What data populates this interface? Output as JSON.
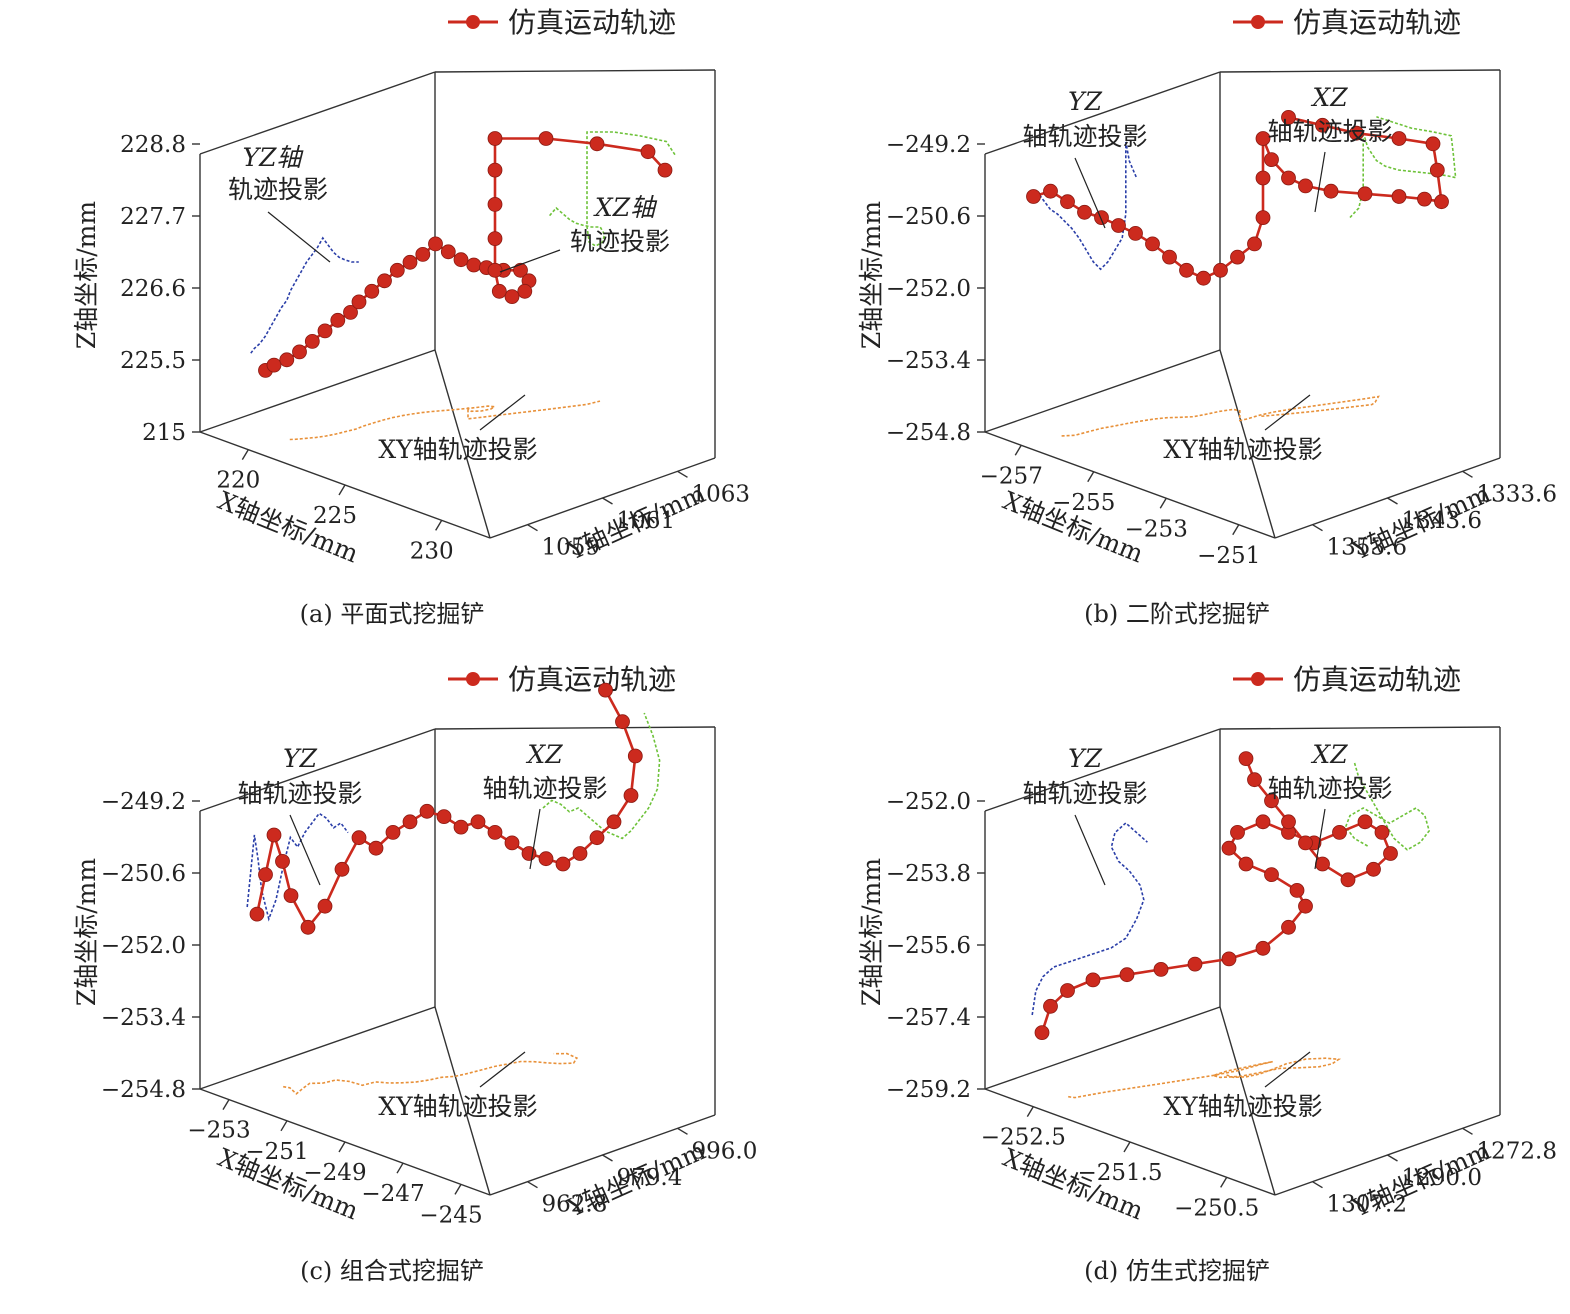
{
  "colors": {
    "sim": "#cc2a1e",
    "yz": "#2b3fa8",
    "xz": "#6ec23a",
    "xy": "#e8913a",
    "axis": "#333333"
  },
  "chart_data": [
    {
      "type": "scatter",
      "caption": "(a) 平面式挖掘铲",
      "legend": "仿真运动轨迹",
      "zlabel": "Z轴坐标/mm",
      "xlabel": "X轴坐标/mm",
      "ylabel": "Y轴坐标/mm",
      "z_ticks": [
        "228.8",
        "227.7",
        "226.6",
        "225.5",
        "215"
      ],
      "x_ticks": [
        "220",
        "225",
        "230"
      ],
      "y_ticks": [
        "1063",
        "1061",
        "1059"
      ],
      "annotations": [
        "YZ轴",
        "轨迹投影",
        "XZ轴",
        "轨迹投影",
        "XY轴轨迹投影"
      ],
      "series": [
        {
          "name": "仿真运动轨迹",
          "points": [
            [
              0.06,
              0.12
            ],
            [
              0.08,
              0.14
            ],
            [
              0.11,
              0.16
            ],
            [
              0.14,
              0.19
            ],
            [
              0.17,
              0.23
            ],
            [
              0.2,
              0.27
            ],
            [
              0.23,
              0.31
            ],
            [
              0.26,
              0.34
            ],
            [
              0.28,
              0.38
            ],
            [
              0.31,
              0.42
            ],
            [
              0.34,
              0.46
            ],
            [
              0.37,
              0.5
            ],
            [
              0.4,
              0.53
            ],
            [
              0.43,
              0.56
            ],
            [
              0.46,
              0.6
            ],
            [
              0.49,
              0.57
            ],
            [
              0.52,
              0.54
            ],
            [
              0.55,
              0.52
            ],
            [
              0.58,
              0.51
            ],
            [
              0.62,
              0.5
            ],
            [
              0.66,
              0.5
            ],
            [
              0.68,
              0.46
            ],
            [
              0.67,
              0.42
            ],
            [
              0.64,
              0.4
            ],
            [
              0.61,
              0.42
            ],
            [
              0.6,
              0.5
            ],
            [
              0.6,
              0.62
            ],
            [
              0.6,
              0.75
            ],
            [
              0.6,
              0.88
            ],
            [
              0.6,
              1.0
            ],
            [
              0.72,
              1.0
            ],
            [
              0.84,
              0.98
            ],
            [
              0.96,
              0.95
            ],
            [
              1.0,
              0.88
            ]
          ]
        }
      ]
    },
    {
      "type": "scatter",
      "caption": "(b) 二阶式挖掘铲",
      "legend": "仿真运动轨迹",
      "zlabel": "Z轴坐标/mm",
      "xlabel": "X轴坐标/mm",
      "ylabel": "Y轴坐标/mm",
      "z_ticks": [
        "−249.2",
        "−250.6",
        "−252.0",
        "−253.4",
        "−254.8"
      ],
      "x_ticks": [
        "−257",
        "−255",
        "−253",
        "−251"
      ],
      "y_ticks": [
        "1333.6",
        "1343.6",
        "1353.6"
      ],
      "annotations": [
        "YZ",
        "轴轨迹投影",
        "XZ",
        "轴轨迹投影",
        "XY轴轨迹投影"
      ],
      "series": [
        {
          "name": "仿真运动轨迹",
          "points": [
            [
              0.02,
              0.78
            ],
            [
              0.06,
              0.8
            ],
            [
              0.1,
              0.76
            ],
            [
              0.14,
              0.72
            ],
            [
              0.18,
              0.7
            ],
            [
              0.22,
              0.67
            ],
            [
              0.26,
              0.64
            ],
            [
              0.3,
              0.6
            ],
            [
              0.34,
              0.55
            ],
            [
              0.38,
              0.5
            ],
            [
              0.42,
              0.47
            ],
            [
              0.46,
              0.5
            ],
            [
              0.5,
              0.55
            ],
            [
              0.54,
              0.6
            ],
            [
              0.56,
              0.7
            ],
            [
              0.56,
              0.85
            ],
            [
              0.56,
              1.0
            ],
            [
              0.58,
              0.92
            ],
            [
              0.62,
              0.85
            ],
            [
              0.66,
              0.82
            ],
            [
              0.72,
              0.8
            ],
            [
              0.8,
              0.79
            ],
            [
              0.88,
              0.78
            ],
            [
              0.94,
              0.77
            ],
            [
              0.98,
              0.76
            ],
            [
              0.97,
              0.88
            ],
            [
              0.96,
              0.98
            ],
            [
              0.88,
              1.0
            ],
            [
              0.78,
              1.02
            ],
            [
              0.7,
              1.05
            ],
            [
              0.62,
              1.08
            ]
          ]
        }
      ]
    },
    {
      "type": "scatter",
      "caption": "(c) 组合式挖掘铲",
      "legend": "仿真运动轨迹",
      "zlabel": "Z轴坐标/mm",
      "xlabel": "X轴坐标/mm",
      "ylabel": "Y轴坐标/mm",
      "z_ticks": [
        "−249.2",
        "−250.6",
        "−252.0",
        "−253.4",
        "−254.8"
      ],
      "x_ticks": [
        "−253",
        "−251",
        "−249",
        "−247",
        "−245"
      ],
      "y_ticks": [
        "996.0",
        "979.4",
        "962.8"
      ],
      "annotations": [
        "YZ",
        "轴轨迹投影",
        "XZ",
        "轴轨迹投影",
        "XY轴轨迹投影"
      ],
      "series": [
        {
          "name": "仿真运动轨迹",
          "points": [
            [
              0.04,
              0.55
            ],
            [
              0.06,
              0.7
            ],
            [
              0.08,
              0.85
            ],
            [
              0.1,
              0.75
            ],
            [
              0.12,
              0.62
            ],
            [
              0.16,
              0.5
            ],
            [
              0.2,
              0.58
            ],
            [
              0.24,
              0.72
            ],
            [
              0.28,
              0.84
            ],
            [
              0.32,
              0.8
            ],
            [
              0.36,
              0.86
            ],
            [
              0.4,
              0.9
            ],
            [
              0.44,
              0.94
            ],
            [
              0.48,
              0.92
            ],
            [
              0.52,
              0.88
            ],
            [
              0.56,
              0.9
            ],
            [
              0.6,
              0.86
            ],
            [
              0.64,
              0.82
            ],
            [
              0.68,
              0.78
            ],
            [
              0.72,
              0.76
            ],
            [
              0.76,
              0.74
            ],
            [
              0.8,
              0.78
            ],
            [
              0.84,
              0.84
            ],
            [
              0.88,
              0.9
            ],
            [
              0.92,
              1.0
            ],
            [
              0.93,
              1.15
            ],
            [
              0.9,
              1.28
            ],
            [
              0.86,
              1.4
            ]
          ]
        }
      ]
    },
    {
      "type": "scatter",
      "caption": "(d) 仿生式挖掘铲",
      "legend": "仿真运动轨迹",
      "zlabel": "Z轴坐标/mm",
      "xlabel": "X轴坐标/mm",
      "ylabel": "Y轴坐标/mm",
      "z_ticks": [
        "−252.0",
        "−253.8",
        "−255.6",
        "−257.4",
        "−259.2"
      ],
      "x_ticks": [
        "−252.5",
        "−251.5",
        "−250.5"
      ],
      "y_ticks": [
        "1272.8",
        "1290.0",
        "1307.2"
      ],
      "annotations": [
        "YZ",
        "轴轨迹投影",
        "XZ",
        "轴轨迹投影",
        "XY轴轨迹投影"
      ],
      "series": [
        {
          "name": "仿真运动轨迹",
          "points": [
            [
              0.04,
              0.1
            ],
            [
              0.06,
              0.2
            ],
            [
              0.1,
              0.26
            ],
            [
              0.16,
              0.3
            ],
            [
              0.24,
              0.32
            ],
            [
              0.32,
              0.34
            ],
            [
              0.4,
              0.36
            ],
            [
              0.48,
              0.38
            ],
            [
              0.56,
              0.42
            ],
            [
              0.62,
              0.5
            ],
            [
              0.66,
              0.58
            ],
            [
              0.64,
              0.64
            ],
            [
              0.58,
              0.7
            ],
            [
              0.52,
              0.74
            ],
            [
              0.48,
              0.8
            ],
            [
              0.5,
              0.86
            ],
            [
              0.56,
              0.9
            ],
            [
              0.62,
              0.86
            ],
            [
              0.68,
              0.82
            ],
            [
              0.74,
              0.86
            ],
            [
              0.8,
              0.9
            ],
            [
              0.84,
              0.86
            ],
            [
              0.86,
              0.78
            ],
            [
              0.82,
              0.72
            ],
            [
              0.76,
              0.68
            ],
            [
              0.7,
              0.74
            ],
            [
              0.66,
              0.82
            ],
            [
              0.62,
              0.9
            ],
            [
              0.58,
              0.98
            ],
            [
              0.54,
              1.06
            ],
            [
              0.52,
              1.14
            ]
          ]
        }
      ]
    }
  ]
}
